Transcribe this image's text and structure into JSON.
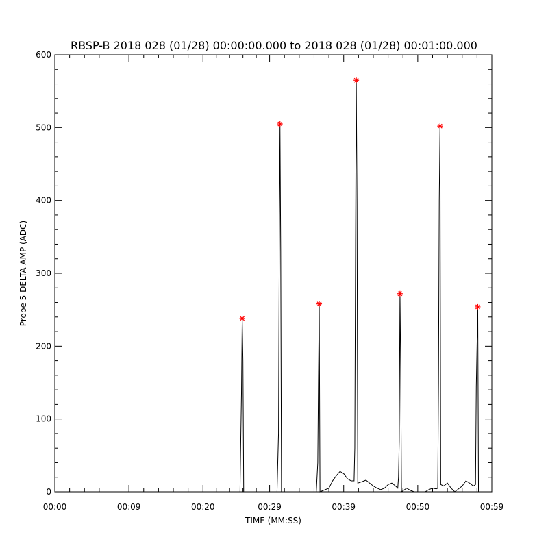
{
  "chart_data": {
    "type": "line",
    "title": "RBSP-B 2018 028 (01/28) 00:00:00.000 to 2018 028 (01/28) 00:01:00.000",
    "xlabel": "TIME (MM:SS)",
    "ylabel": "Probe 5 DELTA AMP (ADC)",
    "x_unit": "seconds",
    "xlim": [
      0,
      59
    ],
    "ylim": [
      0,
      600
    ],
    "x_tick_values": [
      0,
      10,
      20,
      29,
      39,
      49,
      59
    ],
    "x_tick_labels": [
      "00:00",
      "00:09",
      "00:20",
      "00:29",
      "00:39",
      "00:50",
      "00:59"
    ],
    "y_tick_values": [
      0,
      100,
      200,
      300,
      400,
      500,
      600
    ],
    "y_tick_labels": [
      "0",
      "100",
      "200",
      "300",
      "400",
      "500",
      "600"
    ],
    "grid": false,
    "line_color": "#000000",
    "marker_color": "#ff0000",
    "series": [
      {
        "values": [
          [
            0,
            0
          ],
          [
            25.0,
            0
          ],
          [
            25.2,
            135
          ],
          [
            25.3,
            238
          ],
          [
            25.4,
            180
          ],
          [
            25.5,
            0
          ],
          [
            30.0,
            0
          ],
          [
            30.2,
            80
          ],
          [
            30.3,
            330
          ],
          [
            30.4,
            505
          ],
          [
            30.5,
            330
          ],
          [
            30.6,
            0
          ],
          [
            35.3,
            0
          ],
          [
            35.5,
            40
          ],
          [
            35.6,
            160
          ],
          [
            35.7,
            258
          ],
          [
            35.8,
            0
          ],
          [
            37.0,
            5
          ],
          [
            37.5,
            15
          ],
          [
            38.0,
            22
          ],
          [
            38.5,
            28
          ],
          [
            39.0,
            25
          ],
          [
            39.5,
            18
          ],
          [
            40.0,
            15
          ],
          [
            40.4,
            15
          ],
          [
            40.5,
            60
          ],
          [
            40.6,
            345
          ],
          [
            40.7,
            565
          ],
          [
            40.8,
            395
          ],
          [
            40.9,
            12
          ],
          [
            41.5,
            14
          ],
          [
            42.0,
            16
          ],
          [
            42.5,
            12
          ],
          [
            43.0,
            8
          ],
          [
            43.5,
            5
          ],
          [
            44.0,
            3
          ],
          [
            44.5,
            5
          ],
          [
            45.0,
            10
          ],
          [
            45.5,
            12
          ],
          [
            46.0,
            8
          ],
          [
            46.3,
            5
          ],
          [
            46.4,
            20
          ],
          [
            46.5,
            70
          ],
          [
            46.6,
            272
          ],
          [
            46.7,
            170
          ],
          [
            46.8,
            0
          ],
          [
            47.5,
            5
          ],
          [
            48.0,
            2
          ],
          [
            48.5,
            0
          ],
          [
            49.0,
            0
          ],
          [
            50.0,
            0
          ],
          [
            50.5,
            3
          ],
          [
            51.0,
            5
          ],
          [
            51.5,
            4
          ],
          [
            51.7,
            5
          ],
          [
            51.8,
            150
          ],
          [
            51.9,
            400
          ],
          [
            52.0,
            502
          ],
          [
            52.1,
            10
          ],
          [
            52.5,
            8
          ],
          [
            53.0,
            12
          ],
          [
            53.5,
            5
          ],
          [
            54.0,
            0
          ],
          [
            55.0,
            8
          ],
          [
            55.5,
            15
          ],
          [
            56.0,
            12
          ],
          [
            56.5,
            8
          ],
          [
            56.8,
            10
          ],
          [
            56.9,
            145
          ],
          [
            57.0,
            200
          ],
          [
            57.1,
            254
          ],
          [
            57.2,
            0
          ],
          [
            59,
            0
          ]
        ]
      }
    ],
    "peak_markers": [
      [
        25.3,
        238
      ],
      [
        30.4,
        505
      ],
      [
        35.7,
        258
      ],
      [
        40.7,
        565
      ],
      [
        46.6,
        272
      ],
      [
        52.0,
        502
      ],
      [
        57.1,
        254
      ]
    ]
  }
}
